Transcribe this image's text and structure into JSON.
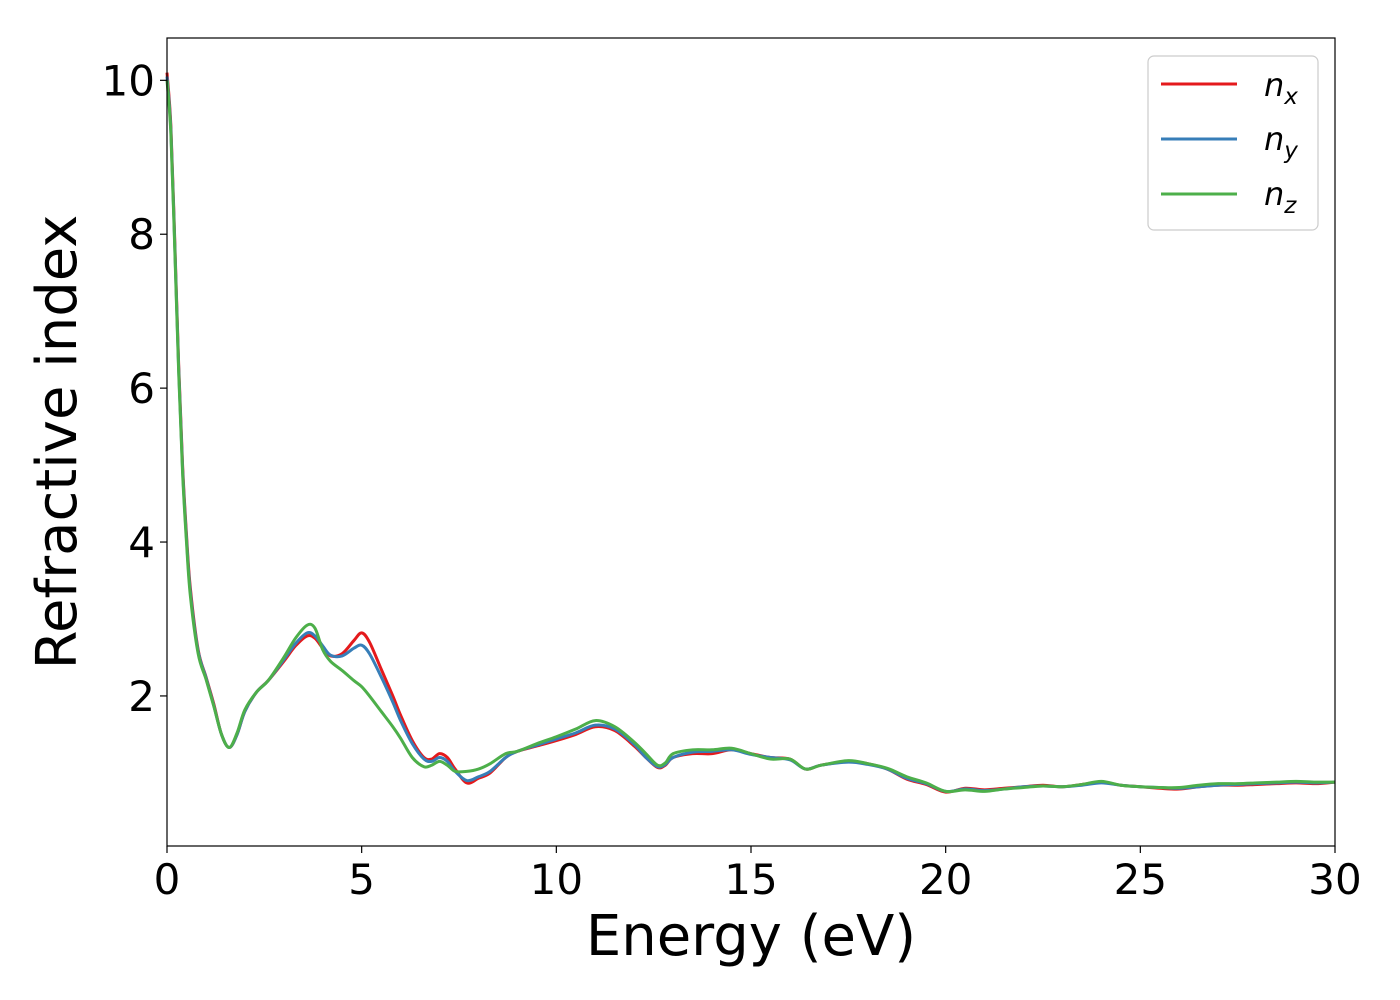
{
  "chart_data": {
    "type": "line",
    "xlabel": "Energy (eV)",
    "ylabel": "Refractive index",
    "xlim": [
      0,
      30
    ],
    "ylim": [
      0.05,
      10.55
    ],
    "xticks": [
      0,
      5,
      10,
      15,
      20,
      25,
      30
    ],
    "xtick_labels": [
      "0",
      "5",
      "10",
      "15",
      "20",
      "25",
      "30"
    ],
    "yticks": [
      2,
      4,
      6,
      8,
      10
    ],
    "ytick_labels": [
      "2",
      "4",
      "6",
      "8",
      "10"
    ],
    "grid": false,
    "legend_position": "top-right",
    "series": [
      {
        "name": "n_x",
        "label_main": "n",
        "label_sub": "x",
        "color": "#e41a1c",
        "x": [
          0,
          0.1,
          0.2,
          0.3,
          0.4,
          0.5,
          0.6,
          0.8,
          1.0,
          1.2,
          1.4,
          1.6,
          1.8,
          2.0,
          2.3,
          2.6,
          3.0,
          3.3,
          3.6,
          3.8,
          4.0,
          4.2,
          4.5,
          4.8,
          5.0,
          5.2,
          5.5,
          5.8,
          6.0,
          6.3,
          6.6,
          6.8,
          7.0,
          7.2,
          7.4,
          7.7,
          8.0,
          8.3,
          8.7,
          9.0,
          9.5,
          10.0,
          10.5,
          11.0,
          11.5,
          12.0,
          12.3,
          12.6,
          12.8,
          13.0,
          13.5,
          14.0,
          14.5,
          15.0,
          15.5,
          16.0,
          16.4,
          16.8,
          17.5,
          18.0,
          18.5,
          19.0,
          19.5,
          20.0,
          20.5,
          21.0,
          21.5,
          22.0,
          22.5,
          23.0,
          23.5,
          24.0,
          24.5,
          25.0,
          25.5,
          26.0,
          26.5,
          27.0,
          27.5,
          28.0,
          28.5,
          29.0,
          29.5,
          30.0
        ],
        "y": [
          10.1,
          9.4,
          7.9,
          6.3,
          5.0,
          4.1,
          3.4,
          2.6,
          2.25,
          1.9,
          1.5,
          1.33,
          1.5,
          1.8,
          2.05,
          2.2,
          2.45,
          2.65,
          2.78,
          2.75,
          2.62,
          2.52,
          2.55,
          2.72,
          2.82,
          2.7,
          2.35,
          2.0,
          1.75,
          1.42,
          1.2,
          1.18,
          1.25,
          1.2,
          1.05,
          0.87,
          0.93,
          1.0,
          1.2,
          1.28,
          1.35,
          1.42,
          1.5,
          1.6,
          1.55,
          1.35,
          1.2,
          1.07,
          1.1,
          1.2,
          1.25,
          1.25,
          1.3,
          1.25,
          1.2,
          1.18,
          1.05,
          1.1,
          1.15,
          1.12,
          1.05,
          0.92,
          0.85,
          0.75,
          0.8,
          0.78,
          0.8,
          0.82,
          0.84,
          0.82,
          0.85,
          0.88,
          0.84,
          0.82,
          0.8,
          0.79,
          0.82,
          0.84,
          0.84,
          0.85,
          0.86,
          0.87,
          0.86,
          0.88
        ]
      },
      {
        "name": "n_y",
        "label_main": "n",
        "label_sub": "y",
        "color": "#377eb8",
        "x": [
          0,
          0.1,
          0.2,
          0.3,
          0.4,
          0.5,
          0.6,
          0.8,
          1.0,
          1.2,
          1.4,
          1.6,
          1.8,
          2.0,
          2.3,
          2.6,
          3.0,
          3.3,
          3.6,
          3.8,
          4.0,
          4.2,
          4.5,
          4.8,
          5.0,
          5.2,
          5.5,
          5.8,
          6.0,
          6.3,
          6.6,
          6.8,
          7.0,
          7.2,
          7.4,
          7.7,
          8.0,
          8.3,
          8.7,
          9.0,
          9.5,
          10.0,
          10.5,
          11.0,
          11.5,
          12.0,
          12.3,
          12.6,
          12.8,
          13.0,
          13.5,
          14.0,
          14.5,
          15.0,
          15.5,
          16.0,
          16.4,
          16.8,
          17.5,
          18.0,
          18.5,
          19.0,
          19.5,
          20.0,
          20.5,
          21.0,
          21.5,
          22.0,
          22.5,
          23.0,
          23.5,
          24.0,
          24.5,
          25.0,
          25.5,
          26.0,
          26.5,
          27.0,
          27.5,
          28.0,
          28.5,
          29.0,
          29.5,
          30.0
        ],
        "y": [
          10.05,
          9.35,
          7.85,
          6.25,
          4.95,
          4.05,
          3.35,
          2.58,
          2.24,
          1.88,
          1.5,
          1.33,
          1.5,
          1.8,
          2.05,
          2.2,
          2.47,
          2.68,
          2.82,
          2.78,
          2.65,
          2.53,
          2.52,
          2.62,
          2.66,
          2.55,
          2.25,
          1.92,
          1.68,
          1.38,
          1.18,
          1.15,
          1.2,
          1.15,
          1.02,
          0.9,
          0.95,
          1.02,
          1.2,
          1.28,
          1.36,
          1.44,
          1.52,
          1.62,
          1.57,
          1.37,
          1.2,
          1.08,
          1.11,
          1.2,
          1.27,
          1.28,
          1.3,
          1.24,
          1.2,
          1.17,
          1.05,
          1.1,
          1.14,
          1.11,
          1.05,
          0.93,
          0.86,
          0.76,
          0.79,
          0.77,
          0.79,
          0.82,
          0.83,
          0.82,
          0.84,
          0.87,
          0.84,
          0.82,
          0.81,
          0.8,
          0.82,
          0.84,
          0.85,
          0.86,
          0.87,
          0.88,
          0.87,
          0.88
        ]
      },
      {
        "name": "n_z",
        "label_main": "n",
        "label_sub": "z",
        "color": "#4daf4a",
        "x": [
          0,
          0.1,
          0.2,
          0.3,
          0.4,
          0.5,
          0.6,
          0.8,
          1.0,
          1.2,
          1.4,
          1.6,
          1.8,
          2.0,
          2.3,
          2.6,
          3.0,
          3.3,
          3.6,
          3.8,
          4.0,
          4.2,
          4.5,
          4.8,
          5.0,
          5.2,
          5.5,
          5.8,
          6.0,
          6.3,
          6.6,
          6.8,
          7.0,
          7.2,
          7.4,
          7.7,
          8.0,
          8.3,
          8.7,
          9.0,
          9.5,
          10.0,
          10.5,
          11.0,
          11.5,
          12.0,
          12.3,
          12.6,
          12.8,
          13.0,
          13.5,
          14.0,
          14.5,
          15.0,
          15.5,
          16.0,
          16.4,
          16.8,
          17.5,
          18.0,
          18.5,
          19.0,
          19.5,
          20.0,
          20.5,
          21.0,
          21.5,
          22.0,
          22.5,
          23.0,
          23.5,
          24.0,
          24.5,
          25.0,
          25.5,
          26.0,
          26.5,
          27.0,
          27.5,
          28.0,
          28.5,
          29.0,
          29.5,
          30.0
        ],
        "y": [
          10.0,
          9.3,
          7.8,
          6.2,
          4.9,
          4.0,
          3.3,
          2.55,
          2.22,
          1.87,
          1.5,
          1.33,
          1.52,
          1.82,
          2.05,
          2.2,
          2.5,
          2.75,
          2.92,
          2.88,
          2.6,
          2.45,
          2.33,
          2.2,
          2.12,
          2.0,
          1.8,
          1.6,
          1.45,
          1.2,
          1.08,
          1.1,
          1.15,
          1.1,
          1.02,
          1.02,
          1.05,
          1.12,
          1.25,
          1.28,
          1.38,
          1.47,
          1.57,
          1.68,
          1.6,
          1.4,
          1.25,
          1.1,
          1.13,
          1.25,
          1.3,
          1.3,
          1.32,
          1.25,
          1.18,
          1.18,
          1.05,
          1.1,
          1.16,
          1.12,
          1.06,
          0.95,
          0.87,
          0.76,
          0.78,
          0.76,
          0.79,
          0.81,
          0.83,
          0.82,
          0.85,
          0.89,
          0.84,
          0.82,
          0.81,
          0.81,
          0.84,
          0.86,
          0.86,
          0.87,
          0.88,
          0.89,
          0.88,
          0.88
        ]
      }
    ]
  }
}
